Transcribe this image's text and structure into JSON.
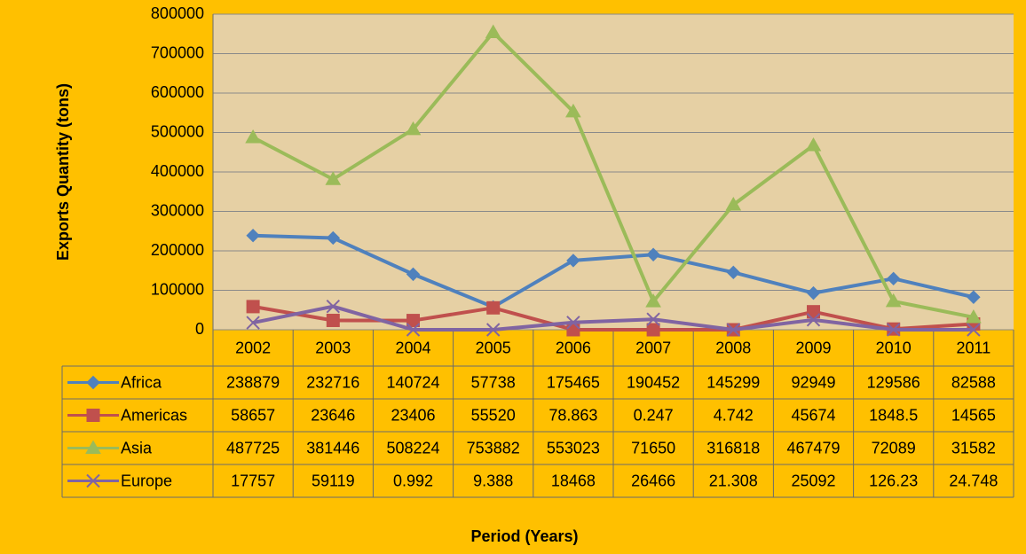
{
  "chart_data": {
    "type": "line",
    "y_label": "Exports Quantity (tons)",
    "x_label": "Period (Years)",
    "categories": [
      "2002",
      "2003",
      "2004",
      "2005",
      "2006",
      "2007",
      "2008",
      "2009",
      "2010",
      "2011"
    ],
    "series": [
      {
        "name": "Africa",
        "color": "#4F81BD",
        "marker": "diamond",
        "values": [
          238879,
          232716,
          140724,
          57738,
          175465,
          190452,
          145299,
          92949,
          129586,
          82588
        ]
      },
      {
        "name": "Americas",
        "color": "#C0504D",
        "marker": "square",
        "values": [
          58657,
          23646,
          23406,
          55520,
          78.863,
          0.247,
          4.742,
          45674,
          1848.5,
          14565
        ]
      },
      {
        "name": "Asia",
        "color": "#9BBB59",
        "marker": "triangle",
        "values": [
          487725,
          381446,
          508224,
          753882,
          553023,
          71650,
          316818,
          467479,
          72089,
          31582
        ]
      },
      {
        "name": "Europe",
        "color": "#8064A2",
        "marker": "x",
        "values": [
          17757,
          59119,
          0.992,
          9.388,
          18468,
          26466,
          21.308,
          25092,
          126.23,
          24.748
        ]
      }
    ],
    "ylim": [
      0,
      800000
    ],
    "yticks": [
      0,
      100000,
      200000,
      300000,
      400000,
      500000,
      600000,
      700000,
      800000
    ],
    "grid": true
  }
}
